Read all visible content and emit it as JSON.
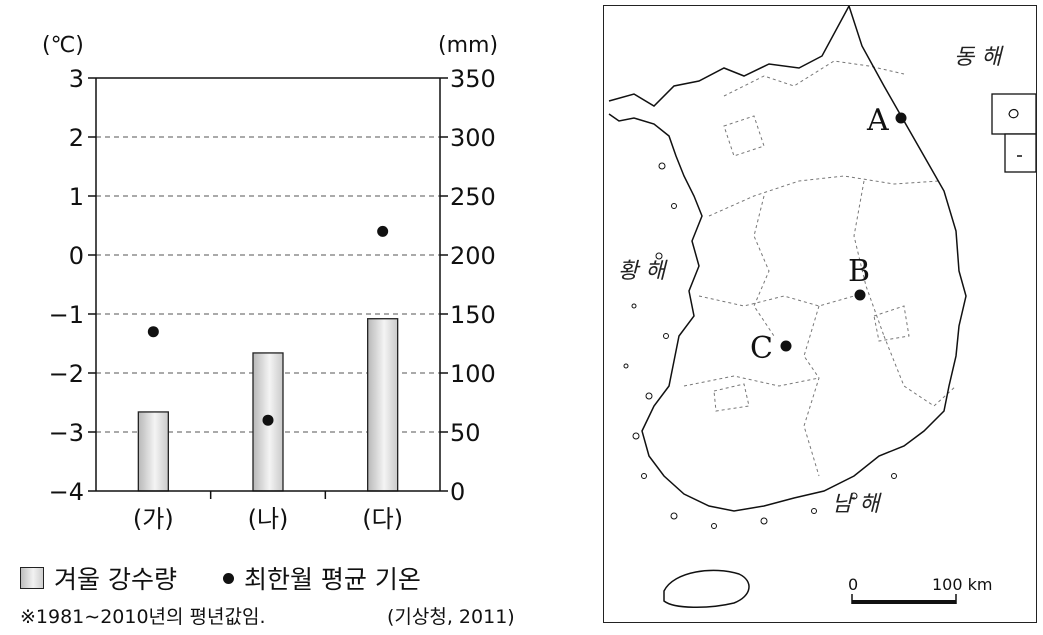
{
  "chart_data": {
    "type": "bar",
    "categories": [
      "(가)",
      "(나)",
      "(다)"
    ],
    "series": [
      {
        "name": "겨울 강수량",
        "axis": "right",
        "values": [
          67,
          117,
          146
        ]
      },
      {
        "name": "최한월 평균 기온",
        "axis": "left",
        "kind": "dot",
        "values": [
          -1.3,
          -2.8,
          0.4
        ]
      }
    ],
    "left_axis": {
      "unit": "(℃)",
      "ylim": [
        -4,
        3
      ],
      "ticks": [
        "3",
        "2",
        "1",
        "0",
        "−1",
        "−2",
        "−3",
        "−4"
      ]
    },
    "right_axis": {
      "unit": "(mm)",
      "ylim": [
        0,
        350
      ],
      "ticks": [
        "350",
        "300",
        "250",
        "200",
        "150",
        "100",
        "50",
        "0"
      ]
    },
    "grid": "dashed horizontal"
  },
  "legend": {
    "precip_label": "겨울 강수량",
    "temp_label": "최한월 평균 기온"
  },
  "note": "※1981∼2010년의 평년값임.",
  "source": "(기상청, 2011)",
  "map": {
    "sea_east": "동 해",
    "sea_west": "황 해",
    "sea_south": "남 해",
    "points": [
      "A",
      "B",
      "C"
    ],
    "scale_zero": "0",
    "scale_distance": "100 km"
  }
}
